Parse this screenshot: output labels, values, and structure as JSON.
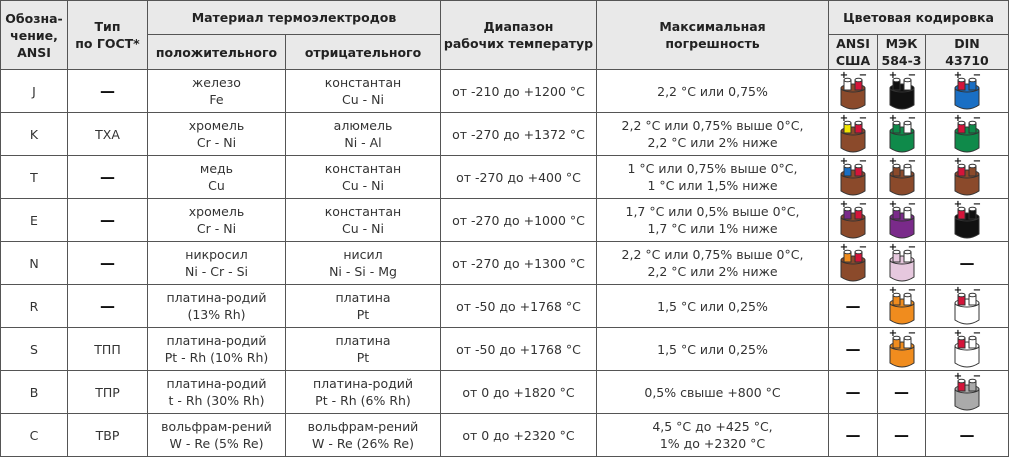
{
  "header": {
    "designation": [
      "Обозна-",
      "чение,",
      "ANSI"
    ],
    "type": [
      "Тип",
      "по ГОСТ*"
    ],
    "material": "Материал термоэлектродов",
    "positive": "положительного",
    "negative": "отрицательного",
    "range": [
      "Диапазон",
      "рабочих температур"
    ],
    "error": [
      "Максимальная",
      "погрешность"
    ],
    "color_coding": "Цветовая кодировка",
    "ansi": [
      "ANSI",
      "США"
    ],
    "iec": [
      "МЭК",
      "584-3"
    ],
    "din": [
      "DIN",
      "43710"
    ]
  },
  "icon_signs": [
    "+",
    "−"
  ],
  "rows": [
    {
      "designation": "J",
      "type": "—",
      "positive": [
        "железо",
        "Fe"
      ],
      "negative": [
        "константан",
        "Cu - Ni"
      ],
      "range": "от -210 до +1200 °C",
      "error": [
        "2,2 °C или 0,75%"
      ],
      "ansi": {
        "jacket": "#8b4a2b",
        "plus": "#ffffff",
        "minus": "#d4143a"
      },
      "iec": {
        "jacket": "#111111",
        "plus": "#111111",
        "minus": "#ffffff"
      },
      "din": {
        "jacket": "#1a6fc4",
        "plus": "#d4143a",
        "minus": "#1a6fc4"
      }
    },
    {
      "designation": "K",
      "type": "ТХА",
      "positive": [
        "хромель",
        "Cr - Ni"
      ],
      "negative": [
        "алюмель",
        "Ni - Al"
      ],
      "range": "от -270 до +1372 °C",
      "error": [
        "2,2 °C или 0,75% выше 0°C,",
        "2,2 °C или 2% ниже"
      ],
      "ansi": {
        "jacket": "#8b4a2b",
        "plus": "#f2e600",
        "minus": "#d4143a"
      },
      "iec": {
        "jacket": "#0f8a4a",
        "plus": "#0f8a4a",
        "minus": "#ffffff"
      },
      "din": {
        "jacket": "#0f8a4a",
        "plus": "#d4143a",
        "minus": "#0f8a4a"
      }
    },
    {
      "designation": "T",
      "type": "—",
      "positive": [
        "медь",
        "Cu"
      ],
      "negative": [
        "константан",
        "Cu - Ni"
      ],
      "range": "от -270 до +400 °C",
      "error": [
        "1 °C или 0,75% выше 0°C,",
        "1 °C или 1,5% ниже"
      ],
      "ansi": {
        "jacket": "#8b4a2b",
        "plus": "#1a6fc4",
        "minus": "#d4143a"
      },
      "iec": {
        "jacket": "#8b4a2b",
        "plus": "#8b4a2b",
        "minus": "#ffffff"
      },
      "din": {
        "jacket": "#8b4a2b",
        "plus": "#d4143a",
        "minus": "#8b4a2b"
      }
    },
    {
      "designation": "E",
      "type": "—",
      "positive": [
        "хромель",
        "Cr - Ni"
      ],
      "negative": [
        "константан",
        "Cu - Ni"
      ],
      "range": "от -270 до +1000 °C",
      "error": [
        "1,7 °C или 0,5% выше 0°C,",
        "1,7 °C или 1% ниже"
      ],
      "ansi": {
        "jacket": "#8b4a2b",
        "plus": "#7a2a8a",
        "minus": "#d4143a"
      },
      "iec": {
        "jacket": "#7a2a8a",
        "plus": "#7a2a8a",
        "minus": "#ffffff"
      },
      "din": {
        "jacket": "#111111",
        "plus": "#d4143a",
        "minus": "#111111"
      }
    },
    {
      "designation": "N",
      "type": "—",
      "positive": [
        "никросил",
        "Ni - Cr - Si"
      ],
      "negative": [
        "нисил",
        "Ni - Si - Mg"
      ],
      "range": "от -270 до +1300 °C",
      "error": [
        "2,2 °C или 0,75% выше 0°C,",
        "2,2 °C или 2% ниже"
      ],
      "ansi": {
        "jacket": "#8b4a2b",
        "plus": "#f08c1e",
        "minus": "#d4143a"
      },
      "iec": {
        "jacket": "#e6c8de",
        "plus": "#e6c8de",
        "minus": "#ffffff"
      },
      "din": "—"
    },
    {
      "designation": "R",
      "type": "—",
      "positive": [
        "платина-родий",
        "(13% Rh)"
      ],
      "negative": [
        "платина",
        "Pt"
      ],
      "range": "от -50 до +1768 °C",
      "error": [
        "1,5 °C или 0,25%"
      ],
      "ansi": "—",
      "iec": {
        "jacket": "#f08c1e",
        "plus": "#f08c1e",
        "minus": "#ffffff"
      },
      "din": {
        "jacket": "#ffffff",
        "plus": "#d4143a",
        "minus": "#ffffff"
      }
    },
    {
      "designation": "S",
      "type": "ТПП",
      "positive": [
        "платина-родий",
        "Pt - Rh (10% Rh)"
      ],
      "negative": [
        "платина",
        "Pt"
      ],
      "range": "от -50 до +1768 °C",
      "error": [
        "1,5 °C или 0,25%"
      ],
      "ansi": "—",
      "iec": {
        "jacket": "#f08c1e",
        "plus": "#f08c1e",
        "minus": "#ffffff"
      },
      "din": {
        "jacket": "#ffffff",
        "plus": "#d4143a",
        "minus": "#ffffff"
      }
    },
    {
      "designation": "B",
      "type": "ТПР",
      "positive": [
        "платина-родий",
        "t - Rh (30% Rh)"
      ],
      "negative": [
        "платина-родий",
        "Pt - Rh (6% Rh)"
      ],
      "range": "от 0 до +1820 °C",
      "error": [
        "0,5% свыше +800 °C"
      ],
      "ansi": "—",
      "iec": "—",
      "din": {
        "jacket": "#aaaaaa",
        "plus": "#d4143a",
        "minus": "#aaaaaa"
      }
    },
    {
      "designation": "C",
      "type": "ТВР",
      "positive": [
        "вольфрам-рений",
        "W - Re (5% Re)"
      ],
      "negative": [
        "вольфрам-рений",
        "W - Re (26% Re)"
      ],
      "range": "от 0 до +2320 °C",
      "error": [
        "4,5 °C до +425 °C,",
        "1% до +2320 °C"
      ],
      "ansi": "—",
      "iec": "—",
      "din": "—"
    }
  ]
}
